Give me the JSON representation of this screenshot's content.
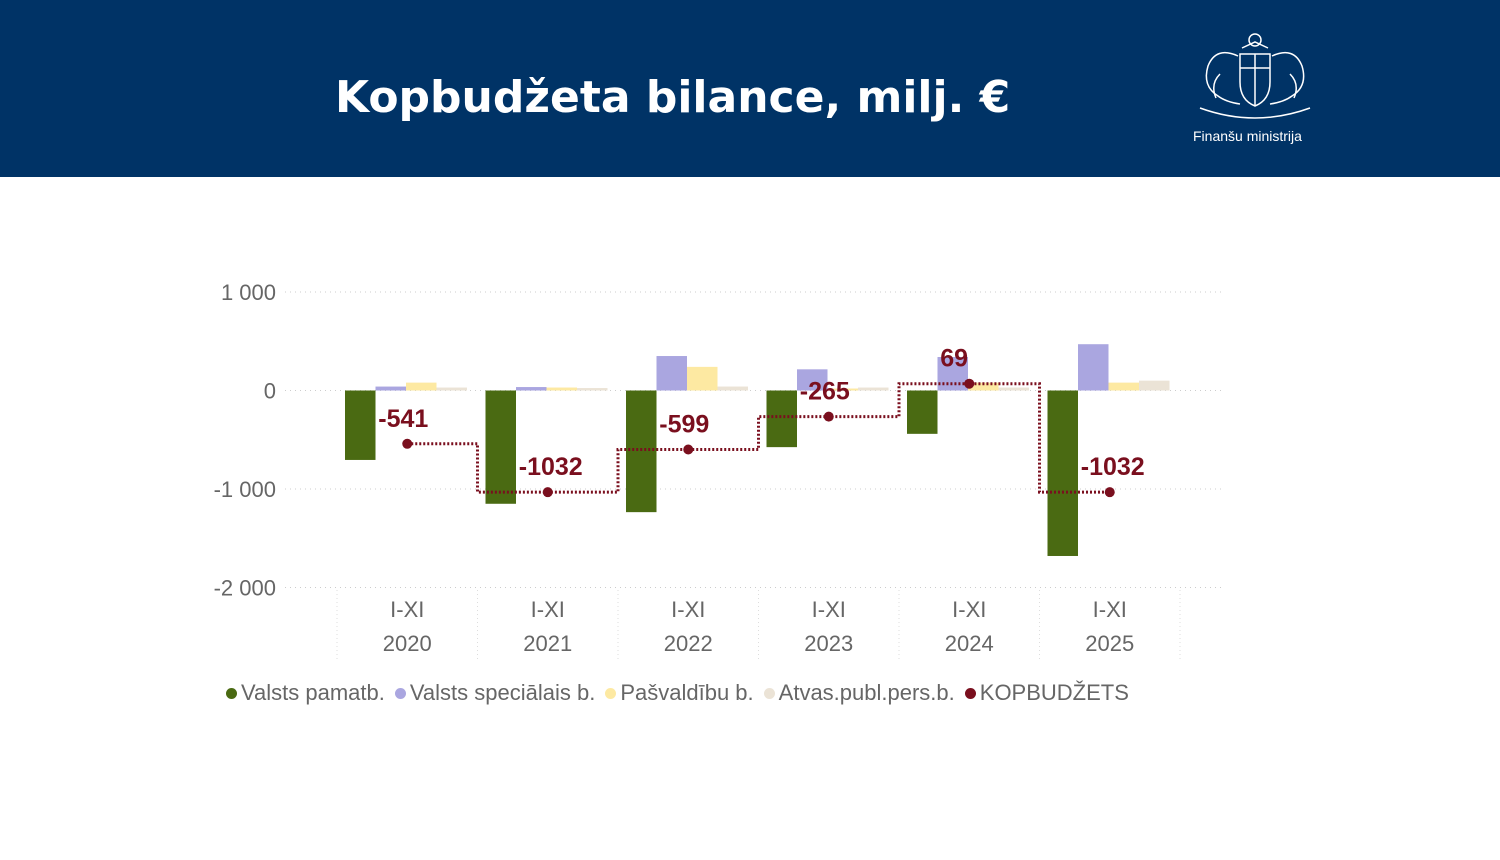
{
  "header": {
    "title": "Kopbudžeta bilance, milj. €",
    "org": "Finanšu ministrija",
    "logo": "latvia-coat-of-arms"
  },
  "colors": {
    "header_bg": "#003366",
    "Valsts pamatb.": "#4a6a12",
    "Valsts speciālais b.": "#aaa6e0",
    "Pašvaldību b.": "#fde9a2",
    "Atvas.publ.pers.b.": "#ebe3d6",
    "KOPBUDŽETS": "#7a0f1e"
  },
  "chart_data": {
    "type": "bar",
    "categories": [
      [
        "I-XI",
        "2020"
      ],
      [
        "I-XI",
        "2021"
      ],
      [
        "I-XI",
        "2022"
      ],
      [
        "I-XI",
        "2023"
      ],
      [
        "I-XI",
        "2024"
      ],
      [
        "I-XI",
        "2025"
      ]
    ],
    "yticks": [
      1000,
      0,
      -1000,
      -2000
    ],
    "ytick_labels": [
      "1 000",
      "0",
      "-1 000",
      "-2 000"
    ],
    "ylim": [
      -2000,
      1000
    ],
    "grid": true,
    "legend_position": "bottom",
    "series": [
      {
        "name": "Valsts pamatb.",
        "type": "bar",
        "values": [
          -705,
          -1150,
          -1235,
          -575,
          -440,
          -1680
        ]
      },
      {
        "name": "Valsts speciālais b.",
        "type": "bar",
        "values": [
          40,
          35,
          350,
          215,
          340,
          470
        ]
      },
      {
        "name": "Pašvaldību b.",
        "type": "bar",
        "values": [
          80,
          30,
          240,
          20,
          80,
          80
        ]
      },
      {
        "name": "Atvas.publ.pers.b.",
        "type": "bar",
        "values": [
          30,
          25,
          40,
          30,
          30,
          100
        ]
      },
      {
        "name": "KOPBUDŽETS",
        "type": "step-line",
        "values": [
          -541,
          -1032,
          -599,
          -265,
          69,
          -1032
        ],
        "labels": [
          "-541",
          "-1032",
          "-599",
          "-265",
          "69",
          "-1032"
        ]
      }
    ]
  }
}
